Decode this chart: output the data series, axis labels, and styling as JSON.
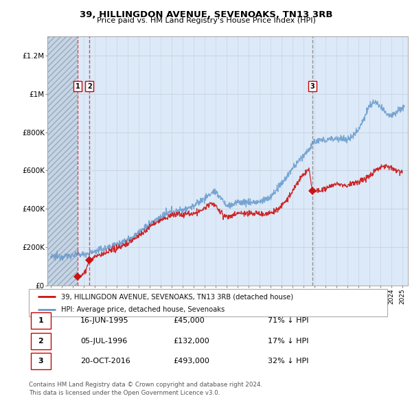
{
  "title": "39, HILLINGDON AVENUE, SEVENOAKS, TN13 3RB",
  "subtitle": "Price paid vs. HM Land Registry's House Price Index (HPI)",
  "ylabel_ticks": [
    "£0",
    "£200K",
    "£400K",
    "£600K",
    "£800K",
    "£1M",
    "£1.2M"
  ],
  "ytick_values": [
    0,
    200000,
    400000,
    600000,
    800000,
    1000000,
    1200000
  ],
  "ylim": [
    0,
    1300000
  ],
  "xlim_start": 1992.7,
  "xlim_end": 2025.5,
  "transactions": [
    {
      "num": 1,
      "date": "16-JUN-1995",
      "price": 45000,
      "year": 1995.45,
      "hpi_pct": "71% ↓ HPI"
    },
    {
      "num": 2,
      "date": "05-JUL-1996",
      "price": 132000,
      "year": 1996.52,
      "hpi_pct": "17% ↓ HPI"
    },
    {
      "num": 3,
      "date": "20-OCT-2016",
      "price": 493000,
      "year": 2016.8,
      "hpi_pct": "32% ↓ HPI"
    }
  ],
  "hatch_end_year": 1995.45,
  "bg_color": "#dce9f8",
  "grid_color": "#c8d4e0",
  "red_line_color": "#cc1111",
  "blue_line_color": "#6699cc",
  "transaction_marker_color": "#cc1111",
  "vline_color_red": "#dd2222",
  "vline_color_gray": "#999999",
  "legend_label_red": "39, HILLINGDON AVENUE, SEVENOAKS, TN13 3RB (detached house)",
  "legend_label_blue": "HPI: Average price, detached house, Sevenoaks",
  "footer_line1": "Contains HM Land Registry data © Crown copyright and database right 2024.",
  "footer_line2": "This data is licensed under the Open Government Licence v3.0.",
  "table_rows": [
    [
      1,
      "16-JUN-1995",
      "£45,000",
      "71% ↓ HPI"
    ],
    [
      2,
      "05-JUL-1996",
      "£132,000",
      "17% ↓ HPI"
    ],
    [
      3,
      "20-OCT-2016",
      "£493,000",
      "32% ↓ HPI"
    ]
  ],
  "hpi_anchors": [
    [
      1993.0,
      148000
    ],
    [
      1994.0,
      152000
    ],
    [
      1995.0,
      158000
    ],
    [
      1995.5,
      162000
    ],
    [
      1996.0,
      163000
    ],
    [
      1996.5,
      168000
    ],
    [
      1997.0,
      178000
    ],
    [
      1998.0,
      195000
    ],
    [
      1999.0,
      215000
    ],
    [
      2000.0,
      240000
    ],
    [
      2001.0,
      275000
    ],
    [
      2002.0,
      318000
    ],
    [
      2003.0,
      355000
    ],
    [
      2004.0,
      385000
    ],
    [
      2005.0,
      395000
    ],
    [
      2006.0,
      415000
    ],
    [
      2007.0,
      455000
    ],
    [
      2007.8,
      490000
    ],
    [
      2008.5,
      460000
    ],
    [
      2009.0,
      415000
    ],
    [
      2009.5,
      420000
    ],
    [
      2010.0,
      435000
    ],
    [
      2011.0,
      435000
    ],
    [
      2012.0,
      435000
    ],
    [
      2013.0,
      460000
    ],
    [
      2014.0,
      530000
    ],
    [
      2015.0,
      610000
    ],
    [
      2016.0,
      680000
    ],
    [
      2016.5,
      710000
    ],
    [
      2017.0,
      750000
    ],
    [
      2018.0,
      760000
    ],
    [
      2019.0,
      770000
    ],
    [
      2020.0,
      760000
    ],
    [
      2020.5,
      780000
    ],
    [
      2021.0,
      820000
    ],
    [
      2021.5,
      870000
    ],
    [
      2022.0,
      940000
    ],
    [
      2022.5,
      960000
    ],
    [
      2023.0,
      930000
    ],
    [
      2023.5,
      900000
    ],
    [
      2024.0,
      890000
    ],
    [
      2024.5,
      910000
    ],
    [
      2025.0,
      930000
    ]
  ],
  "price_anchors": [
    [
      1995.45,
      45000
    ],
    [
      1995.6,
      50000
    ],
    [
      1995.8,
      55000
    ],
    [
      1996.0,
      60000
    ],
    [
      1996.52,
      132000
    ],
    [
      1996.7,
      138000
    ],
    [
      1997.0,
      148000
    ],
    [
      1997.5,
      158000
    ],
    [
      1998.0,
      168000
    ],
    [
      1998.5,
      180000
    ],
    [
      1999.0,
      195000
    ],
    [
      1999.5,
      208000
    ],
    [
      2000.0,
      220000
    ],
    [
      2000.5,
      240000
    ],
    [
      2001.0,
      260000
    ],
    [
      2001.5,
      280000
    ],
    [
      2002.0,
      305000
    ],
    [
      2002.5,
      325000
    ],
    [
      2003.0,
      340000
    ],
    [
      2003.5,
      355000
    ],
    [
      2004.0,
      365000
    ],
    [
      2004.5,
      375000
    ],
    [
      2005.0,
      370000
    ],
    [
      2005.5,
      375000
    ],
    [
      2006.0,
      375000
    ],
    [
      2006.5,
      385000
    ],
    [
      2007.0,
      400000
    ],
    [
      2007.5,
      430000
    ],
    [
      2008.0,
      415000
    ],
    [
      2008.5,
      380000
    ],
    [
      2009.0,
      355000
    ],
    [
      2009.5,
      365000
    ],
    [
      2010.0,
      375000
    ],
    [
      2010.5,
      378000
    ],
    [
      2011.0,
      375000
    ],
    [
      2011.5,
      378000
    ],
    [
      2012.0,
      375000
    ],
    [
      2012.5,
      372000
    ],
    [
      2013.0,
      380000
    ],
    [
      2013.5,
      390000
    ],
    [
      2014.0,
      415000
    ],
    [
      2014.5,
      450000
    ],
    [
      2015.0,
      490000
    ],
    [
      2015.5,
      540000
    ],
    [
      2016.0,
      580000
    ],
    [
      2016.5,
      610000
    ],
    [
      2016.8,
      493000
    ],
    [
      2017.0,
      500000
    ],
    [
      2017.5,
      490000
    ],
    [
      2018.0,
      505000
    ],
    [
      2018.5,
      520000
    ],
    [
      2019.0,
      530000
    ],
    [
      2019.5,
      525000
    ],
    [
      2020.0,
      520000
    ],
    [
      2020.5,
      535000
    ],
    [
      2021.0,
      540000
    ],
    [
      2021.5,
      555000
    ],
    [
      2022.0,
      570000
    ],
    [
      2022.5,
      600000
    ],
    [
      2023.0,
      620000
    ],
    [
      2023.5,
      625000
    ],
    [
      2024.0,
      615000
    ],
    [
      2024.5,
      600000
    ],
    [
      2025.0,
      595000
    ]
  ]
}
